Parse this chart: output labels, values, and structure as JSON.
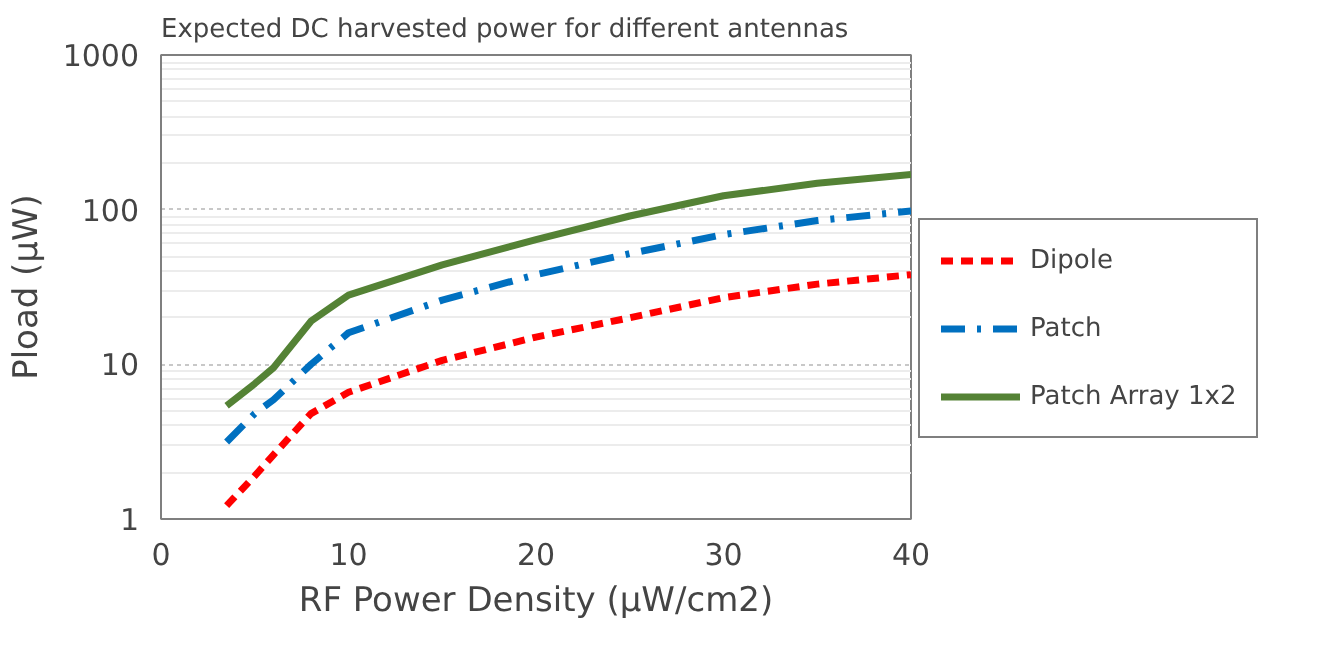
{
  "chart_data": {
    "type": "line",
    "title": "Expected DC harvested power for different antennas",
    "xlabel": "RF Power Density (μW/cm2)",
    "ylabel": "Pload (μW)",
    "x": [
      3.5,
      5,
      6,
      8,
      10,
      15,
      20,
      25,
      30,
      35,
      40
    ],
    "series": [
      {
        "name": "Dipole",
        "color": "#ff0000",
        "line_style": "dashed",
        "values": [
          1.22,
          1.9,
          2.6,
          4.8,
          6.6,
          10.6,
          15,
          20,
          27,
          33,
          38
        ]
      },
      {
        "name": "Patch",
        "color": "#0070c0",
        "line_style": "dashdot",
        "values": [
          3.15,
          4.8,
          5.9,
          10,
          16,
          26,
          38,
          52,
          69,
          85,
          98
        ]
      },
      {
        "name": "Patch Array 1x2",
        "color": "#548235",
        "line_style": "solid",
        "values": [
          5.4,
          7.5,
          9.5,
          19,
          28,
          44,
          64,
          91,
          123,
          148,
          169
        ]
      }
    ],
    "log": "y",
    "xlim": [
      0,
      40
    ],
    "ylim": [
      1,
      1000
    ],
    "xticks": [
      0,
      10,
      20,
      30,
      40
    ],
    "yticks": [
      1,
      10,
      100,
      1000
    ],
    "grid": "y",
    "legend": "right"
  }
}
